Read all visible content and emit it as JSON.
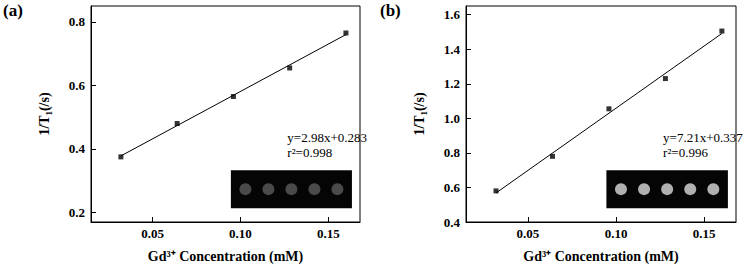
{
  "chart_data": [
    {
      "type": "scatter",
      "title": "(a)",
      "xlabel": "Gd³⁺ Concentration (mM)",
      "ylabel": "1/T₁(/s)",
      "x": [
        0.032,
        0.064,
        0.096,
        0.128,
        0.16
      ],
      "values": [
        0.375,
        0.48,
        0.565,
        0.655,
        0.765
      ],
      "fit_line": {
        "x": [
          0.032,
          0.16
        ],
        "y": [
          0.378,
          0.76
        ]
      },
      "annotations": [
        "y=2.98x+0.283",
        "r²=0.998"
      ],
      "color": "#000000",
      "marker": "square",
      "line_style": "solid",
      "xlim": [
        0.015,
        0.168
      ],
      "xticks": [
        0.05,
        {
          "value": 0.1,
          "label": "0.10"
        },
        0.15
      ],
      "ylim": [
        0.17,
        0.85
      ],
      "yticks": [
        0.2,
        0.4,
        0.6,
        0.8
      ],
      "grid": false
    },
    {
      "type": "scatter",
      "title": "(b)",
      "xlabel": "Gd³⁺ Concentration (mM)",
      "ylabel": "1/T₁(/s)",
      "x": [
        0.032,
        0.064,
        0.096,
        0.128,
        0.16
      ],
      "values": [
        0.58,
        0.78,
        1.055,
        1.23,
        1.505
      ],
      "fit_line": {
        "x": [
          0.032,
          0.16
        ],
        "y": [
          0.568,
          1.491
        ]
      },
      "annotations": [
        "y=7.21x+0.337",
        "r²=0.996"
      ],
      "color": "#000000",
      "marker": "square",
      "line_style": "solid",
      "xlim": [
        0.015,
        0.168
      ],
      "xticks": [
        0.05,
        {
          "value": 0.1,
          "label": "0.10"
        },
        0.15
      ],
      "ylim": [
        0.4,
        1.65
      ],
      "yticks": [
        0.4,
        0.6,
        0.8,
        {
          "value": 1.0,
          "label": "1.0"
        },
        1.2,
        1.4,
        1.6
      ],
      "grid": false
    }
  ]
}
